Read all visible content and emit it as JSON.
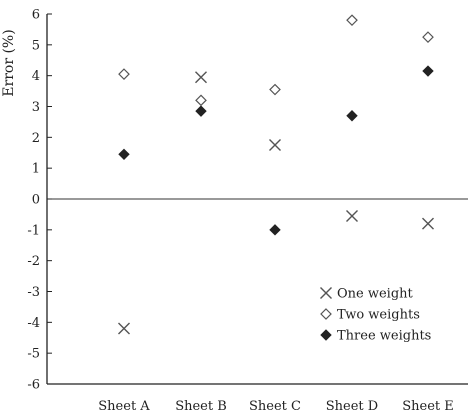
{
  "chart_data": {
    "type": "scatter",
    "title": "",
    "xlabel": "",
    "ylabel": "Error (%)",
    "ylim": [
      -6,
      6
    ],
    "yticks": [
      6,
      5,
      4,
      3,
      2,
      1,
      0,
      -1,
      -2,
      -3,
      -4,
      -5,
      -6
    ],
    "categories": [
      "Sheet A",
      "Sheet B",
      "Sheet C",
      "Sheet D",
      "Sheet E"
    ],
    "grid": false,
    "zero_line": true,
    "legend_position": "bottom-right",
    "series": [
      {
        "name": "One weight",
        "marker": "x",
        "color": "#555555",
        "values": [
          -4.2,
          3.95,
          1.75,
          -0.55,
          -0.8
        ]
      },
      {
        "name": "Two weights",
        "marker": "diamond-open",
        "color": "#555555",
        "values": [
          4.05,
          3.2,
          3.55,
          5.8,
          5.25
        ]
      },
      {
        "name": "Three weights",
        "marker": "diamond-filled",
        "color": "#222222",
        "values": [
          1.45,
          2.85,
          -1.0,
          2.7,
          4.15
        ]
      }
    ]
  }
}
